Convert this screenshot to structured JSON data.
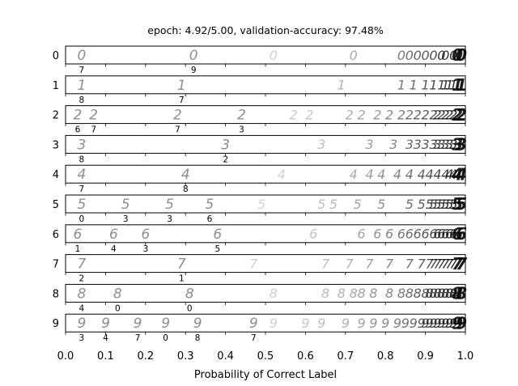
{
  "chart_data": {
    "type": "strip",
    "title": "epoch: 4.92/5.00, validation-accuracy: 97.48%",
    "xlabel": "Probability of Correct Label",
    "xlim": [
      0.0,
      1.0
    ],
    "xticks": [
      "0.0",
      "0.1",
      "0.2",
      "0.3",
      "0.4",
      "0.5",
      "0.6",
      "0.7",
      "0.8",
      "0.9",
      "1.0"
    ],
    "correct_color": "#1a6b35",
    "wrong_color": "#c0504d",
    "rows": [
      {
        "label": "0",
        "glyph": "0",
        "wrong": [
          {
            "p": 0.02,
            "pred": "7"
          },
          {
            "p": 0.3,
            "pred": "9"
          }
        ],
        "correct": [
          0.52,
          0.72,
          0.84,
          0.86,
          0.88,
          0.9,
          0.92,
          0.94,
          0.95,
          0.97,
          0.98,
          0.99
        ]
      },
      {
        "label": "1",
        "glyph": "1",
        "wrong": [
          {
            "p": 0.02,
            "pred": "8"
          },
          {
            "p": 0.27,
            "pred": "7"
          }
        ],
        "correct": [
          0.69,
          0.84,
          0.87,
          0.9,
          0.92,
          0.94,
          0.95,
          0.96,
          0.97,
          0.98,
          0.99
        ]
      },
      {
        "label": "2",
        "glyph": "2",
        "wrong": [
          {
            "p": 0.01,
            "pred": "6"
          },
          {
            "p": 0.05,
            "pred": "7"
          },
          {
            "p": 0.26,
            "pred": "7"
          },
          {
            "p": 0.42,
            "pred": "3"
          }
        ],
        "correct": [
          0.57,
          0.61,
          0.71,
          0.74,
          0.78,
          0.81,
          0.84,
          0.86,
          0.88,
          0.9,
          0.92,
          0.93,
          0.94,
          0.95,
          0.96,
          0.97,
          0.98,
          0.99
        ]
      },
      {
        "label": "3",
        "glyph": "3",
        "wrong": [
          {
            "p": 0.02,
            "pred": "8"
          },
          {
            "p": 0.38,
            "pred": "2"
          }
        ],
        "correct": [
          0.64,
          0.76,
          0.82,
          0.86,
          0.88,
          0.9,
          0.92,
          0.93,
          0.94,
          0.95,
          0.96,
          0.97,
          0.98,
          0.99
        ]
      },
      {
        "label": "4",
        "glyph": "4",
        "wrong": [
          {
            "p": 0.02,
            "pred": "7"
          },
          {
            "p": 0.28,
            "pred": "8"
          }
        ],
        "correct": [
          0.54,
          0.72,
          0.76,
          0.79,
          0.83,
          0.86,
          0.89,
          0.91,
          0.93,
          0.95,
          0.96,
          0.97,
          0.98,
          0.99
        ]
      },
      {
        "label": "5",
        "glyph": "5",
        "wrong": [
          {
            "p": 0.02,
            "pred": "0"
          },
          {
            "p": 0.13,
            "pred": "3"
          },
          {
            "p": 0.24,
            "pred": "3"
          },
          {
            "p": 0.34,
            "pred": "6"
          }
        ],
        "correct": [
          0.49,
          0.64,
          0.67,
          0.73,
          0.79,
          0.86,
          0.89,
          0.91,
          0.92,
          0.93,
          0.94,
          0.95,
          0.96,
          0.97,
          0.98,
          0.99
        ]
      },
      {
        "label": "6",
        "glyph": "6",
        "wrong": [
          {
            "p": 0.01,
            "pred": "1"
          },
          {
            "p": 0.1,
            "pred": "4"
          },
          {
            "p": 0.18,
            "pred": "3"
          },
          {
            "p": 0.36,
            "pred": "5"
          }
        ],
        "correct": [
          0.62,
          0.74,
          0.78,
          0.81,
          0.84,
          0.86,
          0.88,
          0.9,
          0.92,
          0.93,
          0.94,
          0.95,
          0.96,
          0.97,
          0.98,
          0.99
        ]
      },
      {
        "label": "7",
        "glyph": "7",
        "wrong": [
          {
            "p": 0.02,
            "pred": "2"
          },
          {
            "p": 0.27,
            "pred": "1"
          }
        ],
        "correct": [
          0.47,
          0.65,
          0.71,
          0.76,
          0.81,
          0.86,
          0.89,
          0.91,
          0.92,
          0.93,
          0.94,
          0.95,
          0.96,
          0.97,
          0.98,
          0.99
        ]
      },
      {
        "label": "8",
        "glyph": "8",
        "wrong": [
          {
            "p": 0.02,
            "pred": "4"
          },
          {
            "p": 0.11,
            "pred": "0"
          },
          {
            "p": 0.29,
            "pred": "0"
          }
        ],
        "correct": [
          0.52,
          0.65,
          0.69,
          0.72,
          0.74,
          0.77,
          0.81,
          0.84,
          0.86,
          0.88,
          0.9,
          0.91,
          0.92,
          0.93,
          0.94,
          0.95,
          0.96,
          0.97,
          0.98,
          0.99
        ]
      },
      {
        "label": "9",
        "glyph": "9",
        "wrong": [
          {
            "p": 0.02,
            "pred": "3"
          },
          {
            "p": 0.08,
            "pred": "4"
          },
          {
            "p": 0.16,
            "pred": "7"
          },
          {
            "p": 0.23,
            "pred": "0"
          },
          {
            "p": 0.31,
            "pred": "8"
          },
          {
            "p": 0.45,
            "pred": "7"
          }
        ],
        "correct": [
          0.52,
          0.6,
          0.64,
          0.7,
          0.74,
          0.77,
          0.8,
          0.83,
          0.85,
          0.87,
          0.89,
          0.9,
          0.91,
          0.92,
          0.93,
          0.94,
          0.95,
          0.96,
          0.97,
          0.98,
          0.99
        ]
      }
    ]
  }
}
